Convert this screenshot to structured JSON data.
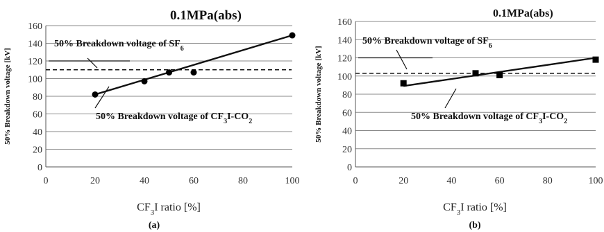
{
  "panels": [
    {
      "label": "(a)",
      "chart_data": {
        "type": "scatter",
        "title": "0.1MPa(abs)",
        "ylabel": "50% Breakdown voltage [kV]",
        "xlabel_parts": {
          "pre": "CF",
          "sub": "3",
          "post": "I ratio [%]"
        },
        "xlim": [
          0,
          100
        ],
        "ylim": [
          0,
          160
        ],
        "xticks": [
          0,
          20,
          40,
          60,
          80,
          100
        ],
        "yticks": [
          0,
          20,
          40,
          60,
          80,
          100,
          120,
          140,
          160
        ],
        "grid": true,
        "marker": "circle",
        "series": [
          {
            "x": [
              20,
              40,
              50,
              60,
              100
            ],
            "y": [
              82,
              97,
              107,
              107,
              149
            ],
            "fit": [
              [
                20,
                82
              ],
              [
                100,
                149
              ]
            ]
          }
        ],
        "reference": {
          "y": 110
        },
        "annotations": [
          {
            "parts": {
              "pre": "50% Breakdown voltage of SF",
              "sub": "6",
              "post": ""
            }
          },
          {
            "parts": {
              "pre": "50% Breakdown voltage of CF",
              "sub": "3",
              "post": "I-CO",
              "sub2": "2"
            }
          }
        ]
      }
    },
    {
      "label": "(b)",
      "chart_data": {
        "type": "scatter",
        "title": "0.1MPa(abs)",
        "ylabel": "50% Breakdown voltage [kV]",
        "xlabel_parts": {
          "pre": "CF",
          "sub": "3",
          "post": "I ratio [%]"
        },
        "xlim": [
          0,
          100
        ],
        "ylim": [
          0,
          160
        ],
        "xticks": [
          0,
          20,
          40,
          60,
          80,
          100
        ],
        "yticks": [
          0,
          20,
          40,
          60,
          80,
          100,
          120,
          140,
          160
        ],
        "grid": true,
        "marker": "square",
        "series": [
          {
            "x": [
              20,
              50,
              60,
              100
            ],
            "y": [
              92,
              103,
              101,
              118
            ],
            "fit": [
              [
                20,
                89
              ],
              [
                100,
                120
              ]
            ]
          }
        ],
        "reference": {
          "y": 103
        },
        "annotations": [
          {
            "parts": {
              "pre": "50% Breakdown voltage of SF",
              "sub": "6",
              "post": ""
            }
          },
          {
            "parts": {
              "pre": "50% Breakdown voltage of CF",
              "sub": "3",
              "post": "I-CO",
              "sub2": "2"
            }
          }
        ]
      }
    }
  ]
}
